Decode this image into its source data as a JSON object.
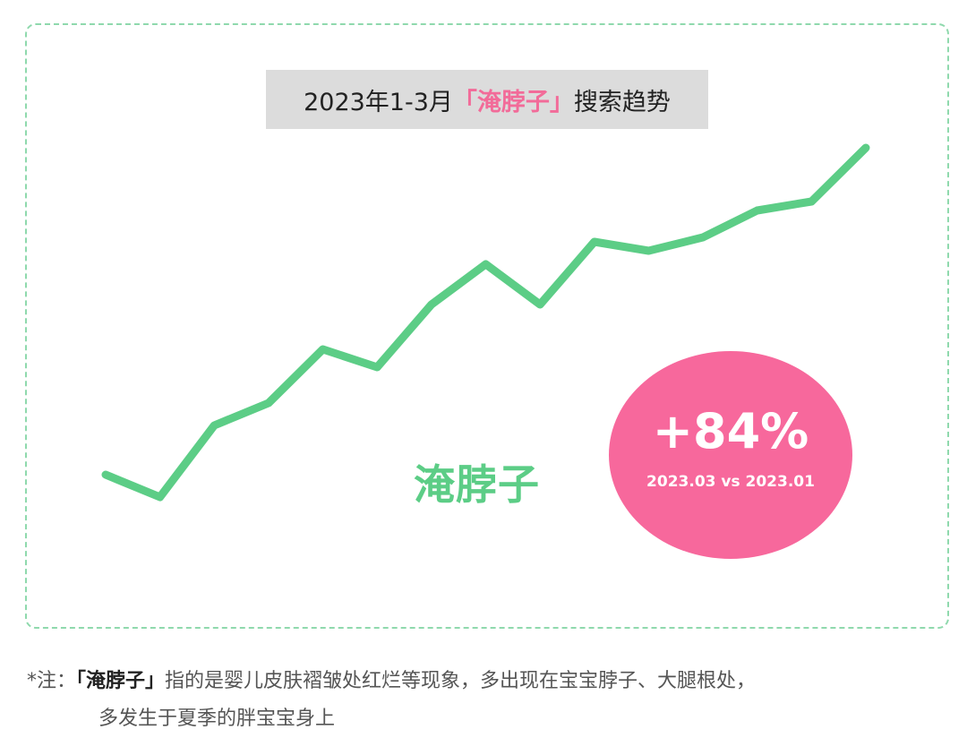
{
  "title": {
    "prefix": "2023年1-3月",
    "keyword": "「淹脖子」",
    "suffix": "搜索趋势"
  },
  "chart_data": {
    "type": "line",
    "title": "2023年1-3月「淹脖子」搜索趋势",
    "xlabel": "",
    "ylabel": "",
    "axes_visible": false,
    "grid": false,
    "ylim": [
      0,
      100
    ],
    "series": [
      {
        "name": "淹脖子",
        "color": "#5ccd86",
        "values": [
          14,
          9,
          25,
          30,
          42,
          38,
          52,
          61,
          52,
          66,
          64,
          67,
          73,
          75,
          87
        ]
      }
    ]
  },
  "callout": {
    "value": "+84%",
    "comparison": "2023.03 vs 2023.01",
    "color": "#f7689c"
  },
  "note": {
    "prefix": "*注：",
    "keyword": "「淹脖子」",
    "line1": "指的是婴儿皮肤褶皱处红烂等现象，多出现在宝宝脖子、大腿根处，",
    "line2": "多发生于夏季的胖宝宝身上"
  }
}
